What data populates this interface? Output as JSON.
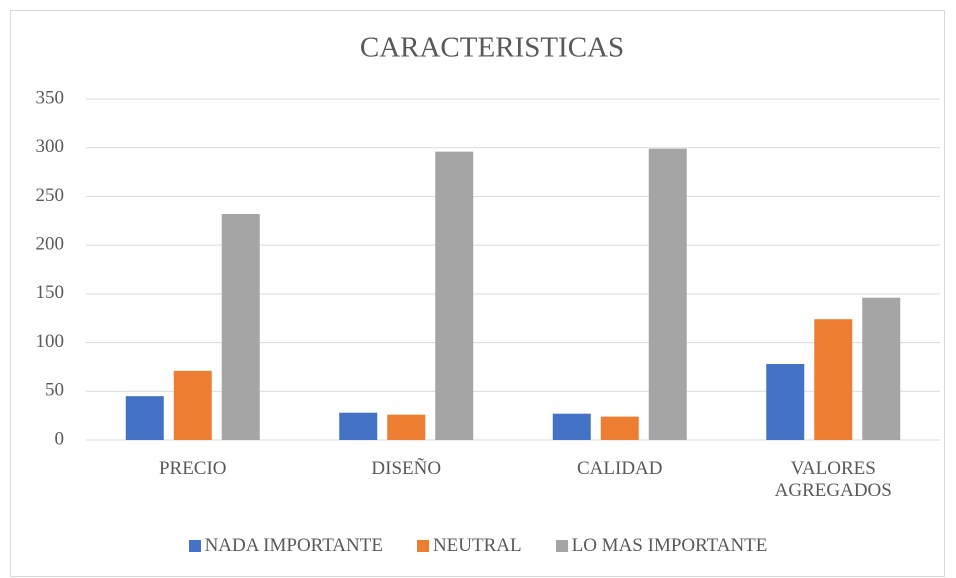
{
  "chart_data": {
    "type": "bar",
    "title": "CARACTERISTICAS",
    "categories": [
      "PRECIO",
      "DISEÑO",
      "CALIDAD",
      "VALORES AGREGADOS"
    ],
    "series": [
      {
        "name": "NADA IMPORTANTE",
        "color": "#4472c4",
        "values": [
          45,
          28,
          27,
          78
        ]
      },
      {
        "name": "NEUTRAL",
        "color": "#ed7d31",
        "values": [
          71,
          26,
          24,
          124
        ]
      },
      {
        "name": "LO MAS IMPORTANTE",
        "color": "#a5a5a5",
        "values": [
          232,
          296,
          299,
          146
        ]
      }
    ],
    "ylim": [
      0,
      350
    ],
    "yticks": [
      0,
      50,
      100,
      150,
      200,
      250,
      300,
      350
    ],
    "grid": true,
    "legend": "bottom"
  }
}
